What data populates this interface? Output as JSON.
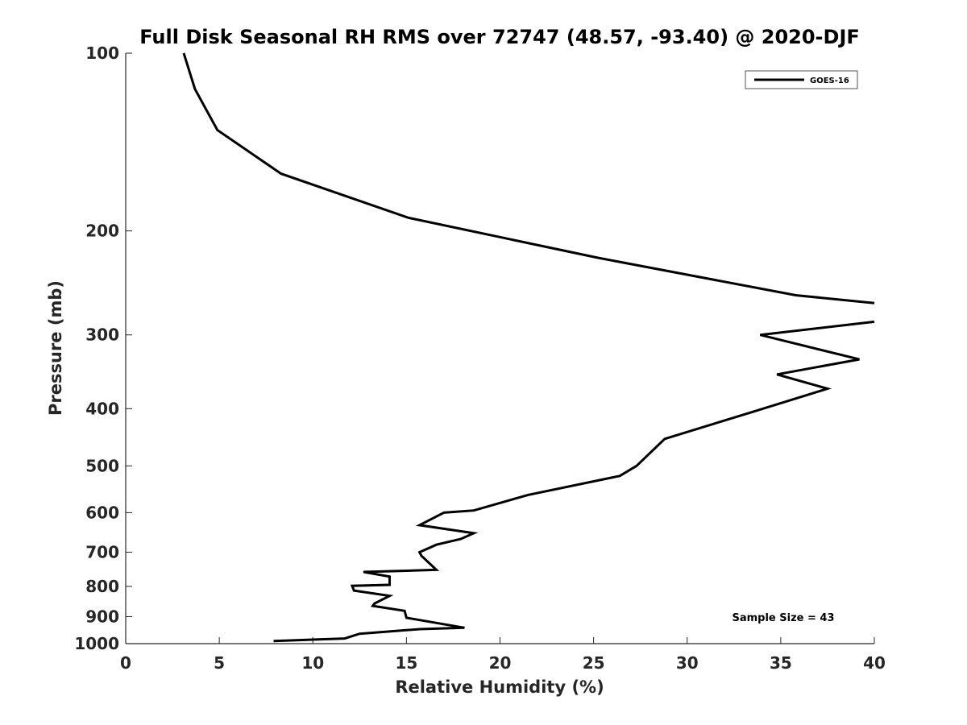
{
  "chart_data": {
    "type": "line",
    "title": "Full Disk Seasonal RH RMS over 72747 (48.57, -93.40) @ 2020-DJF",
    "xlabel": "Relative Humidity (%)",
    "ylabel": "Pressure (mb)",
    "xlim": [
      0,
      40
    ],
    "ylim": [
      100,
      1000
    ],
    "y_scale": "log",
    "y_reversed": true,
    "grid": false,
    "legend_placement": "top-right",
    "x_ticks": [
      0,
      5,
      10,
      15,
      20,
      25,
      30,
      35,
      40
    ],
    "x_tick_labels": [
      "0",
      "5",
      "10",
      "15",
      "20",
      "25",
      "30",
      "35",
      "40"
    ],
    "y_ticks": [
      100,
      200,
      300,
      400,
      500,
      600,
      700,
      800,
      900,
      1000
    ],
    "y_tick_labels": [
      "100",
      "200",
      "300",
      "400",
      "500",
      "600",
      "700",
      "800",
      "900",
      "1000"
    ],
    "series": [
      {
        "name": "GOES-16",
        "color": "#000000",
        "x": [
          3.1,
          3.7,
          4.9,
          8.3,
          15.1,
          25.2,
          35.8,
          40.0,
          null,
          40.0,
          33.9,
          39.2,
          34.8,
          37.5,
          33.5,
          28.8,
          27.3,
          26.4,
          21.5,
          18.6,
          17.0,
          15.7,
          18.6,
          17.9,
          16.6,
          15.7,
          15.8,
          16.6,
          12.7,
          14.1,
          14.1,
          12.1,
          12.2,
          14.1,
          13.3,
          13.2,
          14.9,
          15.0,
          18.1,
          15.7,
          12.5,
          11.7,
          7.9
        ],
        "y": [
          100,
          115,
          135,
          160,
          190,
          222,
          257,
          265,
          null,
          285,
          300,
          330,
          350,
          370,
          405,
          450,
          500,
          520,
          560,
          595,
          600,
          630,
          650,
          665,
          680,
          700,
          710,
          750,
          756,
          770,
          795,
          798,
          813,
          830,
          855,
          863,
          880,
          904,
          940,
          945,
          962,
          980,
          990
        ]
      }
    ],
    "legend": {
      "entries": [
        "GOES-16"
      ]
    },
    "annotations": [
      {
        "text": "Sample Size = 43"
      }
    ]
  }
}
